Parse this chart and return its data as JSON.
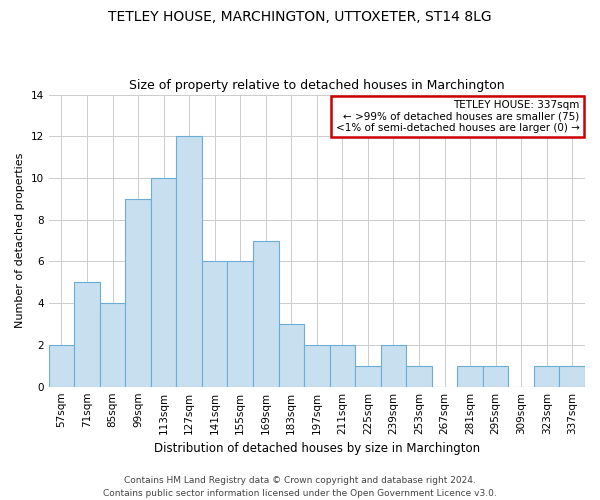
{
  "title": "TETLEY HOUSE, MARCHINGTON, UTTOXETER, ST14 8LG",
  "subtitle": "Size of property relative to detached houses in Marchington",
  "xlabel": "Distribution of detached houses by size in Marchington",
  "ylabel": "Number of detached properties",
  "categories": [
    "57sqm",
    "71sqm",
    "85sqm",
    "99sqm",
    "113sqm",
    "127sqm",
    "141sqm",
    "155sqm",
    "169sqm",
    "183sqm",
    "197sqm",
    "211sqm",
    "225sqm",
    "239sqm",
    "253sqm",
    "267sqm",
    "281sqm",
    "295sqm",
    "309sqm",
    "323sqm",
    "337sqm"
  ],
  "values": [
    2,
    5,
    4,
    9,
    10,
    12,
    6,
    6,
    7,
    3,
    2,
    2,
    1,
    2,
    1,
    0,
    1,
    1,
    0,
    1,
    1
  ],
  "bar_color": "#c8dff0",
  "bar_edge_color": "#6aaed6",
  "annotation_box_text": "TETLEY HOUSE: 337sqm\n← >99% of detached houses are smaller (75)\n<1% of semi-detached houses are larger (0) →",
  "annotation_box_edge_color": "#cc0000",
  "annotation_box_face_color": "white",
  "footer_line1": "Contains HM Land Registry data © Crown copyright and database right 2024.",
  "footer_line2": "Contains public sector information licensed under the Open Government Licence v3.0.",
  "ylim": [
    0,
    14
  ],
  "yticks": [
    0,
    2,
    4,
    6,
    8,
    10,
    12,
    14
  ],
  "background_color": "#ffffff",
  "grid_color": "#cccccc",
  "title_fontsize": 10,
  "subtitle_fontsize": 9,
  "xlabel_fontsize": 8.5,
  "ylabel_fontsize": 8,
  "tick_fontsize": 7.5,
  "annotation_fontsize": 7.5,
  "footer_fontsize": 6.5
}
